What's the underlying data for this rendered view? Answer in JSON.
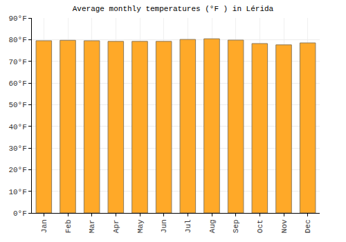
{
  "chart_data": {
    "type": "bar",
    "title": "Average monthly temperatures (°F ) in Lérida",
    "categories": [
      "Jan",
      "Feb",
      "Mar",
      "Apr",
      "May",
      "Jun",
      "Jul",
      "Aug",
      "Sep",
      "Oct",
      "Nov",
      "Dec"
    ],
    "values": [
      79.5,
      79.7,
      79.5,
      79.2,
      79.2,
      79.2,
      80.1,
      80.4,
      79.8,
      78.2,
      77.6,
      78.5
    ],
    "color": "#ffa928",
    "ylim": [
      0,
      90
    ],
    "yticks": [
      {
        "value": 0,
        "label": "0°F"
      },
      {
        "value": 10,
        "label": "10°F"
      },
      {
        "value": 20,
        "label": "20°F"
      },
      {
        "value": 30,
        "label": "30°F"
      },
      {
        "value": 40,
        "label": "40°F"
      },
      {
        "value": 50,
        "label": "50°F"
      },
      {
        "value": 60,
        "label": "60°F"
      },
      {
        "value": 70,
        "label": "70°F"
      },
      {
        "value": 80,
        "label": "80°F"
      },
      {
        "value": 90,
        "label": "90°F"
      }
    ],
    "grid": true
  }
}
